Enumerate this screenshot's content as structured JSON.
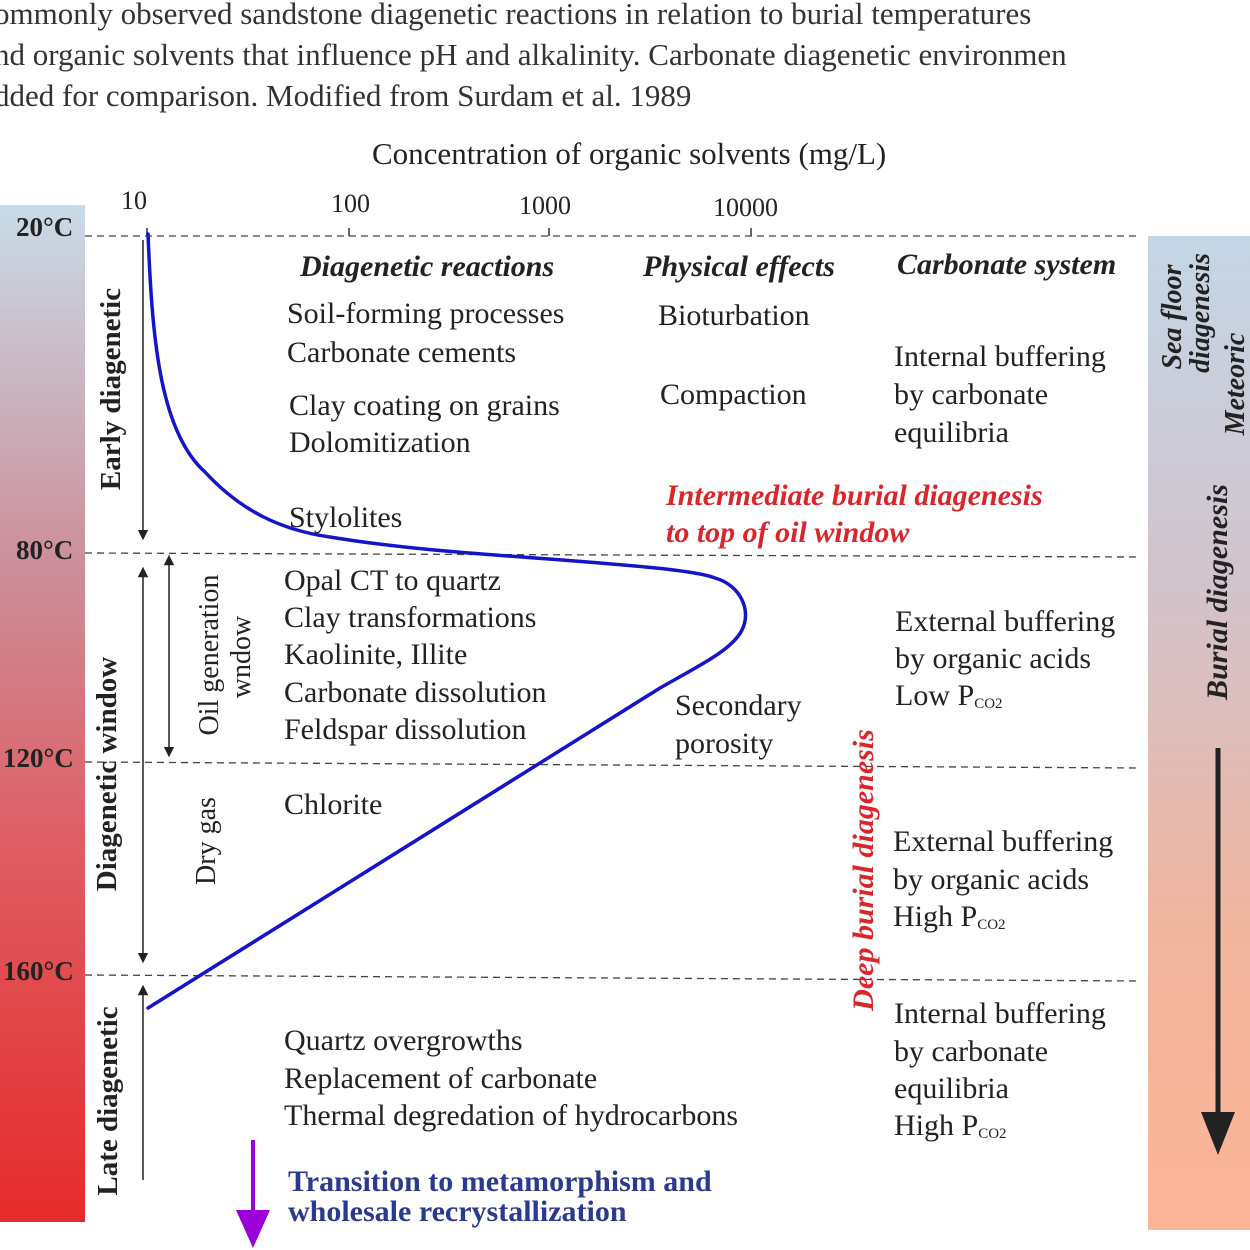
{
  "caption": {
    "line1": "ommonly observed sandstone diagenetic reactions in relation to burial temperatures",
    "line2": "nd organic solvents that influence pH and alkalinity. Carbonate diagenetic environmen",
    "line3": "dded for comparison. Modified from Surdam et al. 1989"
  },
  "axis_title": "Concentration of organic solvents (mg/L)",
  "ticks": [
    "10",
    "100",
    "1000",
    "10000"
  ],
  "temperatures": [
    "20°C",
    "80°C",
    "120°C",
    "160°C"
  ],
  "headers": {
    "reactions": "Diagenetic reactions",
    "physical": "Physical effects",
    "carbonate": "Carbonate system"
  },
  "reactions": {
    "r1": "Soil-forming processes",
    "r2": "Carbonate cements",
    "r3": "Clay coating on grains",
    "r4": "Dolomitization",
    "r5": "Stylolites",
    "r6": "Opal CT to quartz",
    "r7": "Clay transformations",
    "r8": "Kaolinite, Illite",
    "r9": "Carbonate dissolution",
    "r10": "Feldspar dissolution",
    "r11": "Chlorite",
    "r12": "Quartz overgrowths",
    "r13": "Replacement of carbonate",
    "r14": "Thermal degredation of hydrocarbons"
  },
  "physical": {
    "p1": "Bioturbation",
    "p2": "Compaction",
    "p3a": "Secondary",
    "p3b": "porosity"
  },
  "carbonate": {
    "c1a": "Internal buffering",
    "c1b": "by carbonate",
    "c1c": "equilibria",
    "c2a": "External buffering",
    "c2b": "by organic acids",
    "c2c": "Low P",
    "c2sub": "CO2",
    "c3a": "External buffering",
    "c3b": "by organic acids",
    "c3c": "High P",
    "c3sub": "CO2",
    "c4a": "Internal buffering",
    "c4b": "by carbonate",
    "c4c": "equilibria",
    "c4d": "High P",
    "c4sub": "CO2"
  },
  "zones": {
    "early": "Early diagenetic",
    "window": "Diagenetic window",
    "late": "Late diagenetic",
    "oil1": "Oil generation",
    "oil2": "wndow",
    "gas": "Dry gas"
  },
  "red_labels": {
    "intermediate1": "Intermediate burial diagenesis",
    "intermediate2": "to top of oil window",
    "deep": "Deep burial diagenesis"
  },
  "transition": {
    "line1": "Transition to metamorphism and",
    "line2": "wholesale recrystallization"
  },
  "right_bar": {
    "sea1": "Sea floor",
    "sea2": "diagenesis",
    "meteoric": "Meteoric",
    "burial": "Burial diagenesis"
  },
  "colors": {
    "curve": "#1414c8",
    "red_label": "#d9262b",
    "transition_text": "#2a3a8c",
    "transition_arrow": "#9b00d6"
  }
}
